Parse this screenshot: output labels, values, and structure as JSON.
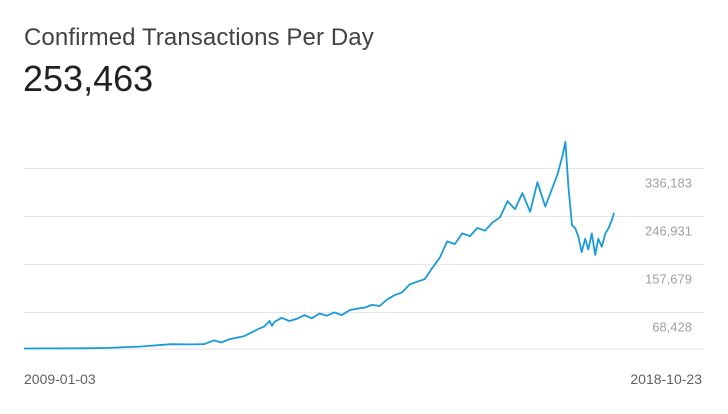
{
  "header": {
    "title": "Confirmed Transactions Per Day",
    "value": "253,463"
  },
  "colors": {
    "line": "#1a9bd7",
    "grid": "#e6e6e6",
    "tick_text": "#a0a0a0",
    "title_text": "#424242"
  },
  "chart_data": {
    "type": "line",
    "title": "Confirmed Transactions Per Day",
    "xlabel": "",
    "ylabel": "",
    "x_range": [
      "2009-01-03",
      "2018-10-23"
    ],
    "ylim": [
      0,
      450000
    ],
    "yticks": [
      68428,
      157679,
      246931,
      336183
    ],
    "ytick_labels": [
      "68,428",
      "157,679",
      "246,931",
      "336,183"
    ],
    "xtick_labels": [
      "2009-01-03",
      "2018-10-23"
    ],
    "grid": true,
    "legend": "none",
    "series": [
      {
        "x": [
          "2009-01-03",
          "2009-06-01",
          "2010-01-01",
          "2010-06-01",
          "2010-12-01",
          "2011-03-01",
          "2011-06-15",
          "2011-10-01",
          "2012-01-01",
          "2012-03-01",
          "2012-04-15",
          "2012-06-01",
          "2012-09-01",
          "2012-12-01",
          "2013-01-01",
          "2013-02-01",
          "2013-02-15",
          "2013-03-01",
          "2013-04-15",
          "2013-06-01",
          "2013-07-15",
          "2013-09-01",
          "2013-10-15",
          "2013-12-01",
          "2014-01-15",
          "2014-03-01",
          "2014-04-15",
          "2014-06-01",
          "2014-07-15",
          "2014-09-01",
          "2014-10-15",
          "2014-12-01",
          "2015-01-15",
          "2015-03-01",
          "2015-04-15",
          "2015-06-01",
          "2015-07-15",
          "2015-09-01",
          "2015-10-15",
          "2015-12-01",
          "2016-01-15",
          "2016-03-01",
          "2016-04-15",
          "2016-06-01",
          "2016-07-15",
          "2016-09-01",
          "2016-10-15",
          "2016-12-01",
          "2017-01-15",
          "2017-03-01",
          "2017-04-15",
          "2017-06-01",
          "2017-07-15",
          "2017-09-01",
          "2017-10-15",
          "2017-11-15",
          "2017-12-15",
          "2018-01-01",
          "2018-01-20",
          "2018-02-10",
          "2018-03-01",
          "2018-03-20",
          "2018-04-10",
          "2018-05-01",
          "2018-05-20",
          "2018-06-10",
          "2018-07-01",
          "2018-07-20",
          "2018-08-10",
          "2018-09-01",
          "2018-09-20",
          "2018-10-10",
          "2018-10-23"
        ],
        "values": [
          1000,
          1100,
          1300,
          2000,
          4500,
          6500,
          9000,
          8500,
          9000,
          16000,
          12000,
          18000,
          24000,
          38000,
          42000,
          52000,
          43000,
          50000,
          58000,
          52000,
          56000,
          63000,
          57000,
          66000,
          62000,
          68000,
          63000,
          72000,
          75000,
          77000,
          82000,
          80000,
          92000,
          100000,
          105000,
          120000,
          125000,
          130000,
          150000,
          170000,
          200000,
          195000,
          215000,
          210000,
          225000,
          220000,
          235000,
          245000,
          275000,
          260000,
          290000,
          255000,
          310000,
          265000,
          300000,
          325000,
          360000,
          385000,
          300000,
          230000,
          225000,
          210000,
          180000,
          205000,
          185000,
          215000,
          175000,
          205000,
          190000,
          215000,
          225000,
          240000,
          253463
        ]
      }
    ]
  }
}
